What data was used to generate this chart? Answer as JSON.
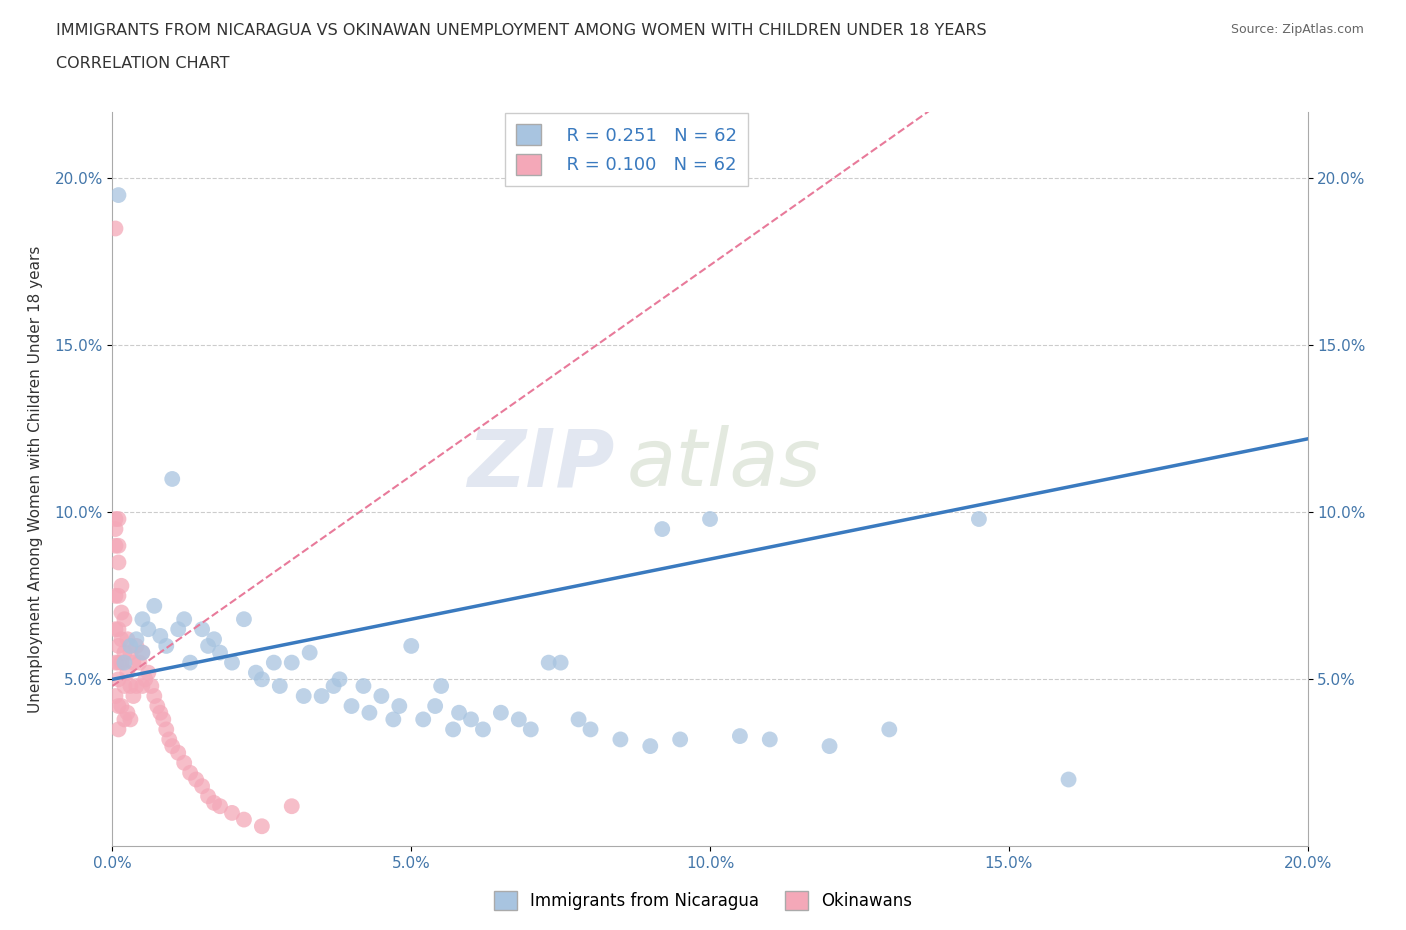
{
  "title": "IMMIGRANTS FROM NICARAGUA VS OKINAWAN UNEMPLOYMENT AMONG WOMEN WITH CHILDREN UNDER 18 YEARS",
  "subtitle": "CORRELATION CHART",
  "source": "Source: ZipAtlas.com",
  "ylabel": "Unemployment Among Women with Children Under 18 years",
  "xlim": [
    0.0,
    0.2
  ],
  "ylim": [
    0.0,
    0.22
  ],
  "xticks": [
    0.0,
    0.05,
    0.1,
    0.15,
    0.2
  ],
  "yticks": [
    0.05,
    0.1,
    0.15,
    0.2
  ],
  "xtick_labels": [
    "0.0%",
    "5.0%",
    "10.0%",
    "15.0%",
    "20.0%"
  ],
  "ytick_labels": [
    "5.0%",
    "10.0%",
    "15.0%",
    "20.0%"
  ],
  "blue_color": "#a8c4e0",
  "pink_color": "#f4a8b8",
  "blue_line_color": "#3a7abf",
  "pink_line_color": "#e87a9a",
  "legend_R1": "0.251",
  "legend_N1": "62",
  "legend_R2": "0.100",
  "legend_N2": "62",
  "watermark_zip": "ZIP",
  "watermark_atlas": "atlas",
  "blue_scatter_x": [
    0.001,
    0.002,
    0.003,
    0.004,
    0.005,
    0.005,
    0.006,
    0.007,
    0.008,
    0.009,
    0.01,
    0.011,
    0.012,
    0.013,
    0.015,
    0.016,
    0.017,
    0.018,
    0.02,
    0.022,
    0.024,
    0.025,
    0.027,
    0.028,
    0.03,
    0.032,
    0.033,
    0.035,
    0.037,
    0.038,
    0.04,
    0.042,
    0.043,
    0.045,
    0.047,
    0.048,
    0.05,
    0.052,
    0.054,
    0.055,
    0.057,
    0.058,
    0.06,
    0.062,
    0.065,
    0.068,
    0.07,
    0.073,
    0.075,
    0.078,
    0.08,
    0.085,
    0.09,
    0.092,
    0.095,
    0.1,
    0.105,
    0.11,
    0.12,
    0.13,
    0.145,
    0.16
  ],
  "blue_scatter_y": [
    0.195,
    0.055,
    0.06,
    0.062,
    0.058,
    0.068,
    0.065,
    0.072,
    0.063,
    0.06,
    0.11,
    0.065,
    0.068,
    0.055,
    0.065,
    0.06,
    0.062,
    0.058,
    0.055,
    0.068,
    0.052,
    0.05,
    0.055,
    0.048,
    0.055,
    0.045,
    0.058,
    0.045,
    0.048,
    0.05,
    0.042,
    0.048,
    0.04,
    0.045,
    0.038,
    0.042,
    0.06,
    0.038,
    0.042,
    0.048,
    0.035,
    0.04,
    0.038,
    0.035,
    0.04,
    0.038,
    0.035,
    0.055,
    0.055,
    0.038,
    0.035,
    0.032,
    0.03,
    0.095,
    0.032,
    0.098,
    0.033,
    0.032,
    0.03,
    0.035,
    0.098,
    0.02
  ],
  "pink_scatter_x": [
    0.0005,
    0.0005,
    0.0005,
    0.0005,
    0.0005,
    0.0005,
    0.0005,
    0.0005,
    0.001,
    0.001,
    0.001,
    0.001,
    0.001,
    0.001,
    0.001,
    0.001,
    0.001,
    0.001,
    0.0015,
    0.0015,
    0.0015,
    0.0015,
    0.0015,
    0.002,
    0.002,
    0.002,
    0.002,
    0.0025,
    0.0025,
    0.0025,
    0.003,
    0.003,
    0.003,
    0.0035,
    0.0035,
    0.004,
    0.004,
    0.0045,
    0.005,
    0.005,
    0.0055,
    0.006,
    0.0065,
    0.007,
    0.0075,
    0.008,
    0.0085,
    0.009,
    0.0095,
    0.01,
    0.011,
    0.012,
    0.013,
    0.014,
    0.015,
    0.016,
    0.017,
    0.018,
    0.02,
    0.022,
    0.025,
    0.03
  ],
  "pink_scatter_y": [
    0.185,
    0.098,
    0.095,
    0.09,
    0.075,
    0.065,
    0.055,
    0.045,
    0.098,
    0.09,
    0.085,
    0.075,
    0.065,
    0.06,
    0.055,
    0.05,
    0.042,
    0.035,
    0.078,
    0.07,
    0.062,
    0.055,
    0.042,
    0.068,
    0.058,
    0.048,
    0.038,
    0.062,
    0.052,
    0.04,
    0.058,
    0.048,
    0.038,
    0.055,
    0.045,
    0.06,
    0.048,
    0.055,
    0.058,
    0.048,
    0.05,
    0.052,
    0.048,
    0.045,
    0.042,
    0.04,
    0.038,
    0.035,
    0.032,
    0.03,
    0.028,
    0.025,
    0.022,
    0.02,
    0.018,
    0.015,
    0.013,
    0.012,
    0.01,
    0.008,
    0.006,
    0.012
  ]
}
